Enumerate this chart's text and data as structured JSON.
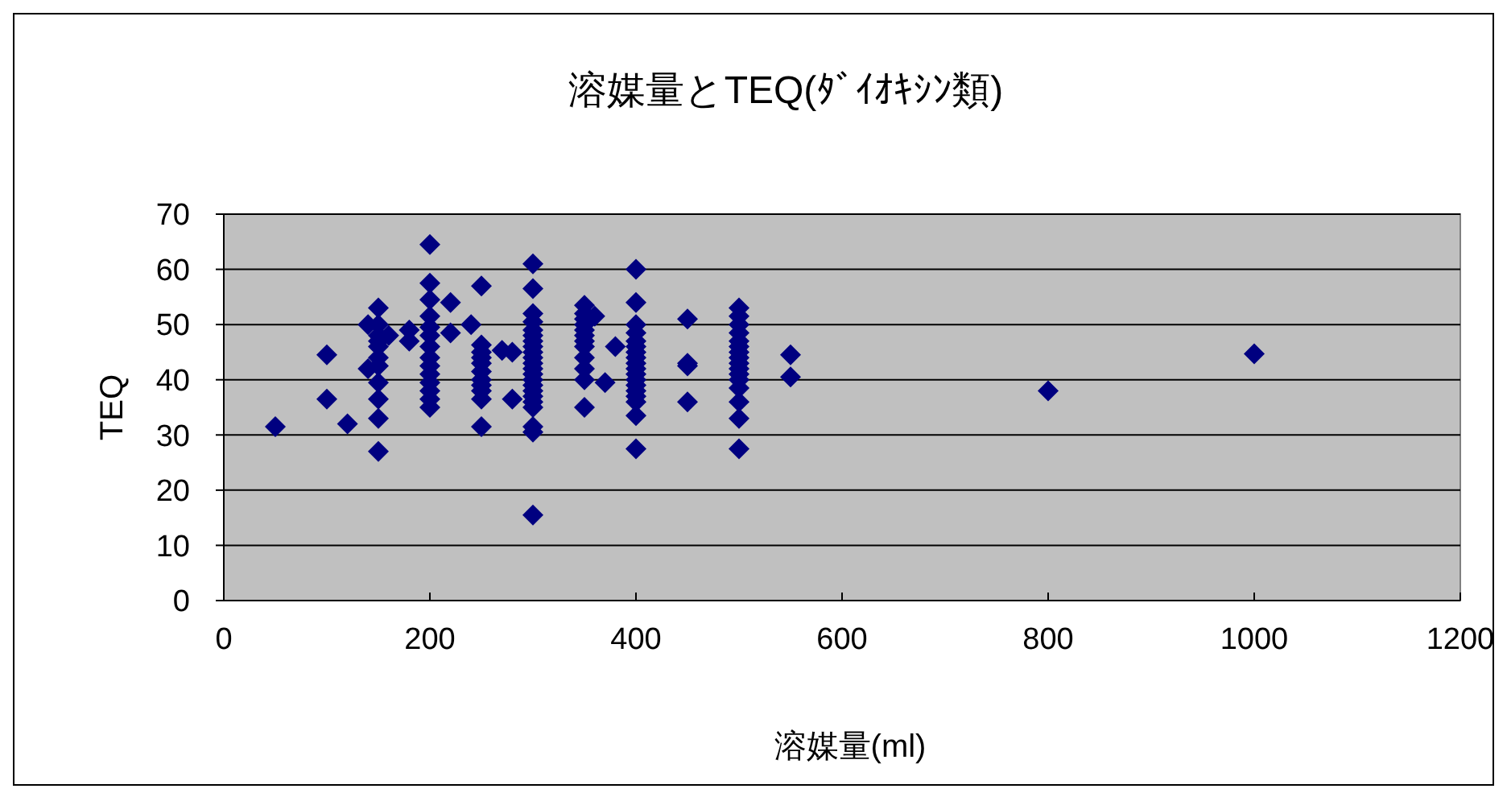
{
  "chart_data": {
    "type": "scatter",
    "title": "溶媒量とTEQ(ﾀﾞｲｵｷｼﾝ類)",
    "xlabel": "溶媒量(ml)",
    "ylabel": "TEQ",
    "xlim": [
      0,
      1200
    ],
    "xticks": [
      0,
      200,
      400,
      600,
      800,
      1000,
      1200
    ],
    "ylim": [
      0,
      70
    ],
    "yticks": [
      0,
      10,
      20,
      30,
      40,
      50,
      60,
      70
    ],
    "grid": "y",
    "marker": "diamond",
    "series": [
      {
        "color": "#000080",
        "x": [
          50,
          100,
          100,
          120,
          140,
          140,
          150,
          150,
          150,
          150,
          150,
          150,
          150,
          150,
          150,
          150,
          150,
          160,
          180,
          180,
          200,
          200,
          200,
          200,
          200,
          200,
          200,
          200,
          200,
          200,
          200,
          200,
          200,
          200,
          220,
          220,
          240,
          250,
          250,
          250,
          250,
          250,
          250,
          250,
          250,
          250,
          250,
          250,
          270,
          280,
          280,
          300,
          300,
          300,
          300,
          300,
          300,
          300,
          300,
          300,
          300,
          300,
          300,
          300,
          300,
          300,
          300,
          300,
          300,
          300,
          300,
          300,
          300,
          350,
          350,
          350,
          350,
          350,
          350,
          350,
          350,
          350,
          350,
          350,
          350,
          360,
          370,
          380,
          400,
          400,
          400,
          400,
          400,
          400,
          400,
          400,
          400,
          400,
          400,
          400,
          400,
          400,
          400,
          400,
          400,
          400,
          450,
          450,
          450,
          450,
          500,
          500,
          500,
          500,
          500,
          500,
          500,
          500,
          500,
          500,
          500,
          500,
          500,
          500,
          500,
          500,
          550,
          550,
          800,
          1000
        ],
        "values": [
          31.5,
          44.5,
          36.5,
          32,
          50,
          42,
          53,
          50,
          48,
          47,
          46,
          44,
          42.5,
          39.5,
          36.5,
          33,
          27,
          48,
          49,
          47,
          64.5,
          57.5,
          54.5,
          51.5,
          49.5,
          48,
          46,
          44,
          42.5,
          41,
          39.5,
          38,
          36.5,
          35,
          54,
          48.5,
          50,
          57,
          46.3,
          45,
          44,
          43,
          41.5,
          40,
          39,
          38,
          36.5,
          31.5,
          45.3,
          45,
          36.5,
          61,
          56.5,
          52,
          50.5,
          49,
          48,
          47,
          46,
          45,
          44,
          43,
          42,
          41,
          40,
          39,
          38,
          37,
          36,
          35,
          31.5,
          30.5,
          15.5,
          53.5,
          52,
          51,
          50,
          49,
          48,
          47,
          46,
          44,
          42,
          40,
          35,
          51.5,
          39.5,
          46,
          60,
          54,
          50,
          48.5,
          47,
          46,
          45,
          44,
          43,
          42,
          41,
          40,
          39,
          38,
          37,
          36,
          33.5,
          27.5,
          51,
          43,
          42.5,
          36,
          53,
          51.5,
          50,
          48.5,
          47,
          46,
          45,
          44,
          43,
          42,
          41,
          40,
          38.5,
          36,
          33,
          27.5,
          44.5,
          40.5,
          38,
          44.7
        ]
      }
    ]
  }
}
